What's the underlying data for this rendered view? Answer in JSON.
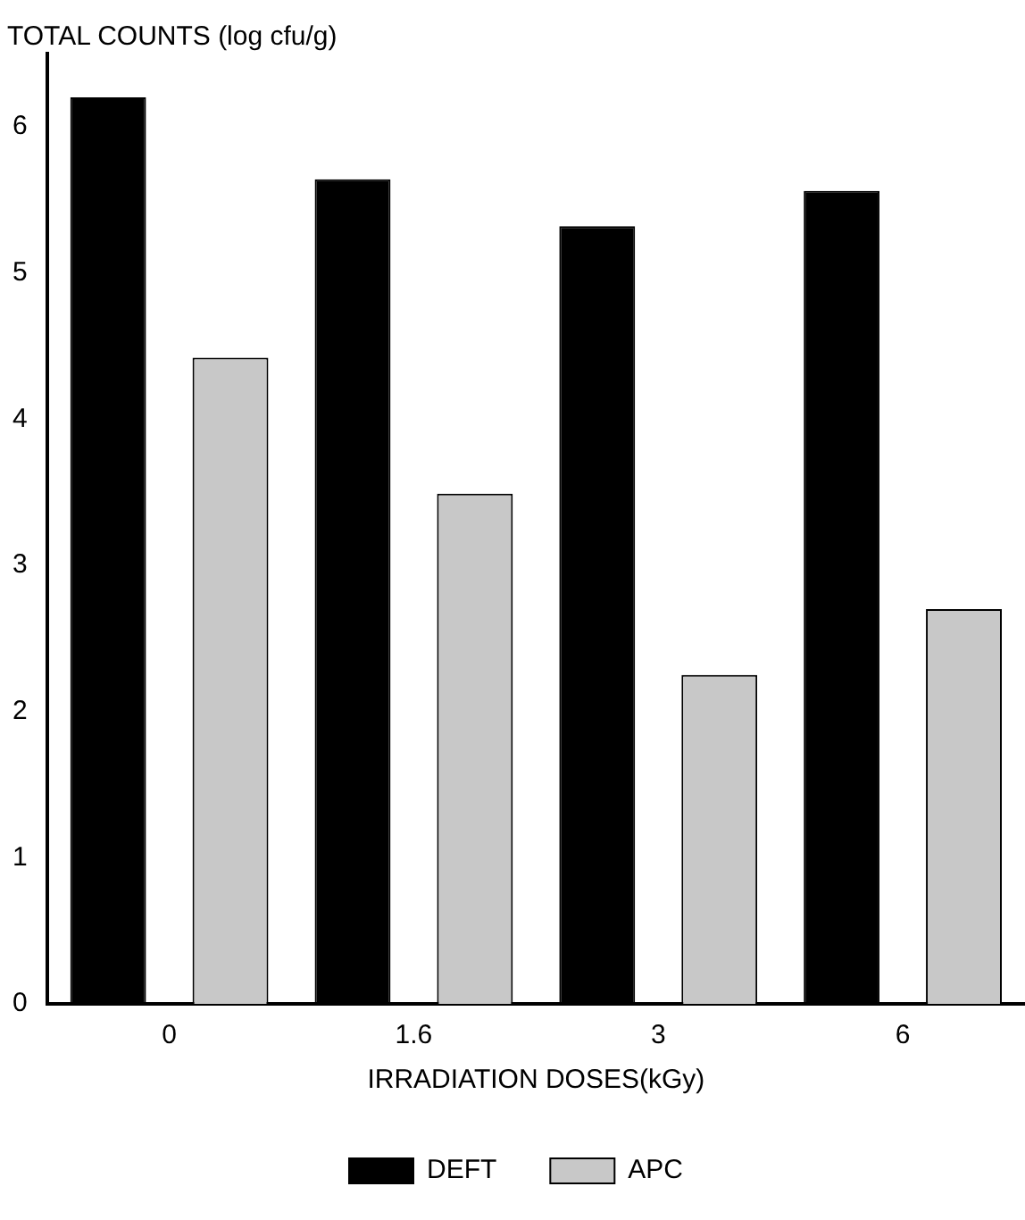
{
  "chart_data": {
    "type": "bar",
    "ylabel": "TOTAL COUNTS (log cfu/g)",
    "xlabel": "IRRADIATION DOSES(kGy)",
    "categories": [
      "0",
      "1.6",
      "3",
      "6"
    ],
    "series": [
      {
        "name": "DEFT",
        "color": "#000000",
        "values": [
          6.2,
          5.64,
          5.32,
          5.56
        ]
      },
      {
        "name": "APC",
        "color": "#c8c8c8",
        "values": [
          4.42,
          3.49,
          2.25,
          2.7
        ]
      }
    ],
    "ylim": [
      0,
      6.5
    ],
    "yticks": [
      0,
      1,
      2,
      3,
      4,
      5,
      6
    ],
    "grid": false,
    "legend": "bottom"
  }
}
